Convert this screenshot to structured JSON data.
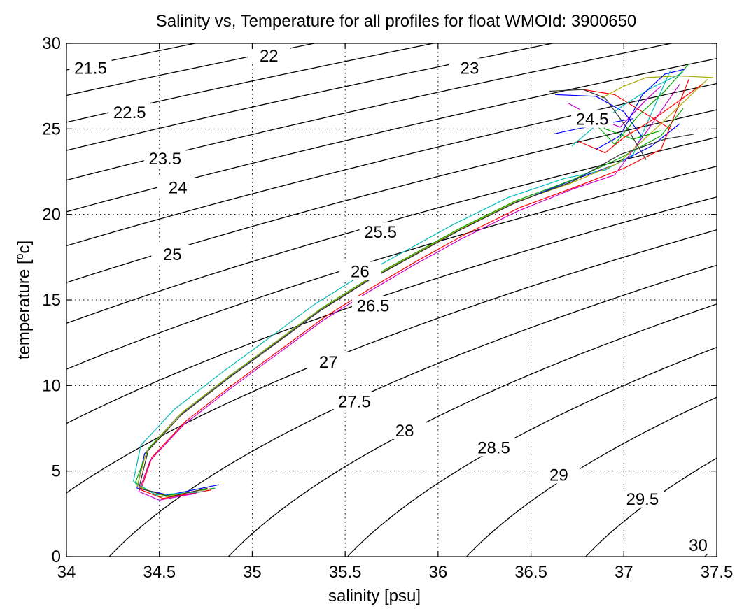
{
  "chart_data": {
    "type": "line",
    "title": "Salinity vs, Temperature for all profiles for float WMOId: 3900650",
    "xlabel": "salinity [psu]",
    "ylabel_main": "temperature [",
    "ylabel_sup": "o",
    "ylabel_end": "c]",
    "xlim": [
      34,
      37.5
    ],
    "ylim": [
      0,
      30
    ],
    "xticks": [
      34,
      34.5,
      35,
      35.5,
      36,
      36.5,
      37,
      37.5
    ],
    "xtick_labels": [
      "34",
      "34.5",
      "35",
      "35.5",
      "36",
      "36.5",
      "37",
      "37.5"
    ],
    "yticks": [
      0,
      5,
      10,
      15,
      20,
      25,
      30
    ],
    "ytick_labels": [
      "0",
      "5",
      "10",
      "15",
      "20",
      "25",
      "30"
    ],
    "grid": true,
    "density_contours": [
      {
        "label": "21.5",
        "label_x": 34.13,
        "label_y": 28.6
      },
      {
        "label": "22",
        "label_x": 35.09,
        "label_y": 29.3
      },
      {
        "label": "22.5",
        "label_x": 34.34,
        "label_y": 26.0
      },
      {
        "label": "23",
        "label_x": 36.17,
        "label_y": 28.6
      },
      {
        "label": "23.5",
        "label_x": 34.53,
        "label_y": 23.3
      },
      {
        "label": "24",
        "label_x": 34.6,
        "label_y": 21.6
      },
      {
        "label": "24.5",
        "label_x": 36.83,
        "label_y": 25.6
      },
      {
        "label": "25",
        "label_x": 34.57,
        "label_y": 17.7
      },
      {
        "label": "25.5",
        "label_x": 35.69,
        "label_y": 19.0
      },
      {
        "label": "26",
        "label_x": 35.58,
        "label_y": 16.7
      },
      {
        "label": "26.5",
        "label_x": 35.65,
        "label_y": 14.7
      },
      {
        "label": "27",
        "label_x": 35.41,
        "label_y": 11.4
      },
      {
        "label": "27.5",
        "label_x": 35.55,
        "label_y": 9.1
      },
      {
        "label": "28",
        "label_x": 35.82,
        "label_y": 7.4
      },
      {
        "label": "28.5",
        "label_x": 36.3,
        "label_y": 6.4
      },
      {
        "label": "29",
        "label_x": 36.65,
        "label_y": 4.8
      },
      {
        "label": "29.5",
        "label_x": 37.1,
        "label_y": 3.4
      },
      {
        "label": "30",
        "label_x": 37.4,
        "label_y": 0.7
      }
    ],
    "series": [
      {
        "color": "#0000ff",
        "points": [
          [
            34.82,
            4.2
          ],
          [
            34.55,
            3.6
          ],
          [
            34.38,
            4.0
          ],
          [
            34.42,
            6.0
          ],
          [
            34.6,
            8.2
          ],
          [
            34.85,
            10.3
          ],
          [
            35.1,
            12.3
          ],
          [
            35.35,
            14.3
          ],
          [
            35.6,
            16.0
          ],
          [
            35.85,
            17.5
          ],
          [
            36.1,
            19.0
          ],
          [
            36.4,
            20.6
          ],
          [
            36.7,
            21.9
          ],
          [
            36.95,
            22.9
          ],
          [
            37.15,
            24.0
          ],
          [
            37.3,
            25.3
          ]
        ]
      },
      {
        "color": "#00aa00",
        "points": [
          [
            34.8,
            4.0
          ],
          [
            34.5,
            3.5
          ],
          [
            34.37,
            4.3
          ],
          [
            34.44,
            6.3
          ],
          [
            34.62,
            8.4
          ],
          [
            34.87,
            10.5
          ],
          [
            35.12,
            12.5
          ],
          [
            35.37,
            14.5
          ],
          [
            35.62,
            16.2
          ],
          [
            35.87,
            17.7
          ],
          [
            36.12,
            19.2
          ],
          [
            36.42,
            20.8
          ],
          [
            36.72,
            22.0
          ],
          [
            36.98,
            23.3
          ],
          [
            37.2,
            24.6
          ],
          [
            37.32,
            26.2
          ]
        ]
      },
      {
        "color": "#ff0000",
        "points": [
          [
            34.78,
            3.9
          ],
          [
            34.52,
            3.4
          ],
          [
            34.4,
            3.9
          ],
          [
            34.46,
            5.8
          ],
          [
            34.64,
            7.9
          ],
          [
            34.89,
            10.0
          ],
          [
            35.14,
            12.0
          ],
          [
            35.39,
            14.0
          ],
          [
            35.64,
            15.7
          ],
          [
            35.89,
            17.3
          ],
          [
            36.14,
            18.8
          ],
          [
            36.44,
            20.4
          ],
          [
            36.74,
            21.6
          ],
          [
            37.0,
            22.7
          ],
          [
            37.2,
            23.8
          ],
          [
            37.35,
            27.9
          ]
        ]
      },
      {
        "color": "#00bbbb",
        "points": [
          [
            34.75,
            3.8
          ],
          [
            34.48,
            3.6
          ],
          [
            34.36,
            4.4
          ],
          [
            34.4,
            6.5
          ],
          [
            34.58,
            8.6
          ],
          [
            34.83,
            10.7
          ],
          [
            35.08,
            12.7
          ],
          [
            35.33,
            14.7
          ],
          [
            35.58,
            16.4
          ],
          [
            35.83,
            17.9
          ],
          [
            36.08,
            19.4
          ],
          [
            36.38,
            21.0
          ],
          [
            36.68,
            22.1
          ],
          [
            36.9,
            22.6
          ],
          [
            37.05,
            23.5
          ],
          [
            37.25,
            28.4
          ]
        ]
      },
      {
        "color": "#cc00cc",
        "points": [
          [
            34.7,
            3.7
          ],
          [
            34.5,
            3.3
          ],
          [
            34.39,
            3.8
          ],
          [
            34.45,
            5.6
          ],
          [
            34.63,
            7.7
          ],
          [
            34.88,
            9.8
          ],
          [
            35.13,
            11.8
          ],
          [
            35.38,
            13.8
          ],
          [
            35.63,
            15.5
          ],
          [
            35.88,
            17.1
          ],
          [
            36.13,
            18.6
          ],
          [
            36.43,
            20.2
          ],
          [
            36.73,
            21.5
          ],
          [
            36.95,
            22.3
          ],
          [
            37.12,
            24.8
          ],
          [
            37.3,
            27.6
          ]
        ]
      },
      {
        "color": "#aaaa00",
        "points": [
          [
            34.73,
            3.9
          ],
          [
            34.54,
            3.5
          ],
          [
            34.38,
            4.1
          ],
          [
            34.43,
            6.1
          ],
          [
            34.61,
            8.3
          ],
          [
            34.86,
            10.4
          ],
          [
            35.11,
            12.4
          ],
          [
            35.36,
            14.4
          ],
          [
            35.61,
            16.1
          ],
          [
            35.86,
            17.6
          ],
          [
            36.11,
            19.1
          ],
          [
            36.41,
            20.7
          ],
          [
            36.71,
            21.8
          ],
          [
            36.97,
            23.0
          ],
          [
            37.18,
            25.1
          ],
          [
            37.45,
            27.9
          ]
        ]
      },
      {
        "color": "#333333",
        "points": [
          [
            34.76,
            4.0
          ],
          [
            34.56,
            3.5
          ],
          [
            34.39,
            4.0
          ],
          [
            34.44,
            6.2
          ],
          [
            34.62,
            8.3
          ],
          [
            34.87,
            10.4
          ],
          [
            35.12,
            12.4
          ],
          [
            35.37,
            14.4
          ],
          [
            35.62,
            16.1
          ],
          [
            35.87,
            17.6
          ],
          [
            36.12,
            19.1
          ],
          [
            36.42,
            20.7
          ],
          [
            36.72,
            21.9
          ],
          [
            36.98,
            23.5
          ],
          [
            37.22,
            24.4
          ],
          [
            37.38,
            24.7
          ]
        ]
      },
      {
        "color": "#0000ff",
        "points": [
          [
            36.62,
            24.7
          ],
          [
            36.75,
            25.0
          ],
          [
            36.9,
            25.3
          ],
          [
            37.05,
            25.6
          ]
        ]
      },
      {
        "color": "#0000ff",
        "points": [
          [
            36.63,
            27.0
          ],
          [
            36.85,
            26.9
          ],
          [
            37.0,
            26.0
          ],
          [
            37.1,
            24.5
          ]
        ]
      },
      {
        "color": "#ff0000",
        "points": [
          [
            36.78,
            27.3
          ],
          [
            36.95,
            27.0
          ],
          [
            37.1,
            26.0
          ],
          [
            37.25,
            25.0
          ]
        ]
      },
      {
        "color": "#00aa00",
        "points": [
          [
            36.8,
            26.0
          ],
          [
            36.9,
            25.0
          ],
          [
            37.05,
            24.4
          ],
          [
            37.2,
            24.9
          ]
        ]
      },
      {
        "color": "#cc00cc",
        "points": [
          [
            36.7,
            26.5
          ],
          [
            36.82,
            25.8
          ],
          [
            36.98,
            25.1
          ],
          [
            37.12,
            26.7
          ],
          [
            37.2,
            27.5
          ]
        ]
      },
      {
        "color": "#00bbbb",
        "points": [
          [
            36.72,
            24.0
          ],
          [
            36.85,
            25.2
          ],
          [
            37.0,
            26.4
          ],
          [
            37.15,
            27.4
          ],
          [
            37.32,
            28.3
          ]
        ]
      },
      {
        "color": "#aaaa00",
        "points": [
          [
            36.88,
            26.8
          ],
          [
            37.0,
            27.5
          ],
          [
            37.12,
            28.0
          ],
          [
            37.3,
            28.1
          ],
          [
            37.48,
            28.0
          ]
        ]
      },
      {
        "color": "#333333",
        "points": [
          [
            36.6,
            27.2
          ],
          [
            36.78,
            27.3
          ],
          [
            36.9,
            26.8
          ],
          [
            37.02,
            25.0
          ],
          [
            37.12,
            23.2
          ]
        ]
      },
      {
        "color": "#ff0000",
        "points": [
          [
            36.75,
            24.3
          ],
          [
            36.9,
            23.6
          ],
          [
            37.0,
            24.5
          ],
          [
            37.15,
            25.5
          ],
          [
            37.28,
            26.5
          ],
          [
            37.42,
            27.6
          ]
        ]
      },
      {
        "color": "#00aa00",
        "points": [
          [
            36.82,
            25.6
          ],
          [
            36.95,
            24.1
          ],
          [
            37.08,
            25.8
          ],
          [
            37.22,
            27.2
          ],
          [
            37.35,
            28.8
          ]
        ]
      },
      {
        "color": "#0000ff",
        "points": [
          [
            36.85,
            23.8
          ],
          [
            36.98,
            24.6
          ],
          [
            37.1,
            27.0
          ],
          [
            37.22,
            28.2
          ],
          [
            37.33,
            28.5
          ]
        ]
      }
    ]
  }
}
